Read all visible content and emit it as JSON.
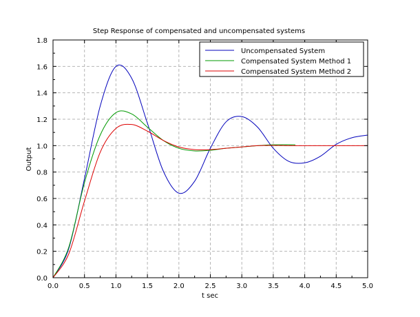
{
  "chart_data": {
    "type": "line",
    "title": "Step Response of compensated and uncompensated systems",
    "xlabel": "t sec",
    "ylabel": "Output",
    "xlim": [
      0,
      5
    ],
    "ylim": [
      0,
      1.8
    ],
    "xticks": [
      "0.0",
      "0.5",
      "1.0",
      "1.5",
      "2.0",
      "2.5",
      "3.0",
      "3.5",
      "4.0",
      "4.5",
      "5.0"
    ],
    "yticks": [
      "0.0",
      "0.2",
      "0.4",
      "0.6",
      "0.8",
      "1.0",
      "1.2",
      "1.4",
      "1.6",
      "1.8"
    ],
    "grid": true,
    "legend": "top-right",
    "series": [
      {
        "name": "Uncompensated System",
        "color": "#0000bb",
        "x": [
          0,
          0.25,
          0.5,
          0.75,
          1.0,
          1.25,
          1.5,
          1.75,
          2.0,
          2.25,
          2.5,
          2.75,
          3.0,
          3.25,
          3.5,
          3.75,
          4.0,
          4.25,
          4.5,
          4.75,
          5.0
        ],
        "y": [
          0,
          0.22,
          0.75,
          1.3,
          1.6,
          1.51,
          1.17,
          0.81,
          0.64,
          0.73,
          0.98,
          1.18,
          1.22,
          1.14,
          0.98,
          0.88,
          0.87,
          0.92,
          1.01,
          1.06,
          1.08
        ]
      },
      {
        "name": "Compensated System Method 1",
        "color": "#009900",
        "x": [
          0,
          0.25,
          0.5,
          0.75,
          1.0,
          1.25,
          1.5,
          1.75,
          2.0,
          2.25,
          2.5,
          2.75,
          3.0,
          3.25,
          3.5,
          3.75,
          3.85
        ],
        "y": [
          0,
          0.23,
          0.72,
          1.08,
          1.25,
          1.24,
          1.14,
          1.04,
          0.98,
          0.96,
          0.965,
          0.98,
          0.99,
          1.0,
          1.006,
          1.007,
          1.006
        ]
      },
      {
        "name": "Compensated System Method 2",
        "color": "#dd0000",
        "x": [
          0,
          0.25,
          0.5,
          0.75,
          1.0,
          1.25,
          1.5,
          1.75,
          2.0,
          2.25,
          2.5,
          2.75,
          3.0,
          3.25,
          3.5,
          3.75,
          4.0,
          4.25,
          4.5,
          4.75,
          5.0
        ],
        "y": [
          0,
          0.18,
          0.58,
          0.95,
          1.13,
          1.16,
          1.11,
          1.04,
          0.99,
          0.97,
          0.97,
          0.98,
          0.99,
          1.0,
          1.002,
          1.0,
          1.0,
          1.0,
          1.0,
          1.0,
          1.0
        ]
      }
    ]
  }
}
